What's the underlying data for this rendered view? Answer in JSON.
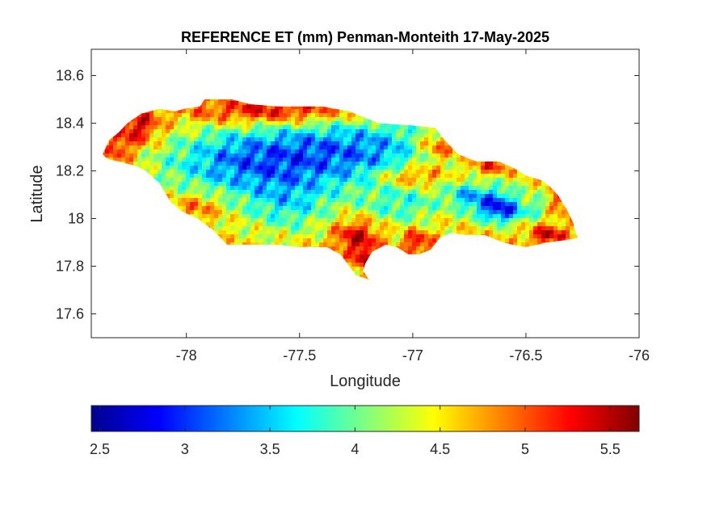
{
  "chart_data": {
    "type": "heatmap",
    "title": "REFERENCE ET (mm) Penman-Monteith 17-May-2025",
    "xlabel": "Longitude",
    "ylabel": "Latitude",
    "xlim": [
      -78.42,
      -76.0
    ],
    "ylim": [
      17.5,
      18.71
    ],
    "xticks": [
      -78,
      -77.5,
      -77,
      -76.5,
      -76
    ],
    "yticks": [
      17.6,
      17.8,
      18,
      18.2,
      18.4,
      18.6
    ],
    "xtick_labels": [
      "-78",
      "-77.5",
      "-77",
      "-76.5",
      "-76"
    ],
    "ytick_labels": [
      "17.6",
      "17.8",
      "18",
      "18.2",
      "18.4",
      "18.6"
    ],
    "grid": false,
    "colormap": "jet",
    "colorbar": {
      "location": "south",
      "clim": [
        2.45,
        5.67
      ],
      "ticks": [
        2.5,
        3,
        3.5,
        4,
        4.5,
        5,
        5.5
      ],
      "tick_labels": [
        "2.5",
        "3",
        "3.5",
        "4",
        "4.5",
        "5",
        "5.5"
      ]
    },
    "colormap_stops": [
      "#00008f",
      "#0000ff",
      "#0080ff",
      "#00ffff",
      "#80ff80",
      "#ffff00",
      "#ff8000",
      "#ff0000",
      "#800000"
    ],
    "outline": [
      [
        -78.37,
        18.27
      ],
      [
        -78.34,
        18.33
      ],
      [
        -78.3,
        18.36
      ],
      [
        -78.26,
        18.4
      ],
      [
        -78.2,
        18.44
      ],
      [
        -78.12,
        18.46
      ],
      [
        -78.05,
        18.45
      ],
      [
        -78.01,
        18.46
      ],
      [
        -77.94,
        18.47
      ],
      [
        -77.92,
        18.5
      ],
      [
        -77.8,
        18.5
      ],
      [
        -77.72,
        18.48
      ],
      [
        -77.6,
        18.47
      ],
      [
        -77.4,
        18.47
      ],
      [
        -77.28,
        18.45
      ],
      [
        -77.15,
        18.4
      ],
      [
        -77.0,
        18.39
      ],
      [
        -76.9,
        18.38
      ],
      [
        -76.86,
        18.33
      ],
      [
        -76.8,
        18.27
      ],
      [
        -76.72,
        18.24
      ],
      [
        -76.62,
        18.24
      ],
      [
        -76.55,
        18.21
      ],
      [
        -76.5,
        18.18
      ],
      [
        -76.43,
        18.16
      ],
      [
        -76.4,
        18.14
      ],
      [
        -76.36,
        18.1
      ],
      [
        -76.32,
        18.04
      ],
      [
        -76.29,
        17.98
      ],
      [
        -76.28,
        17.94
      ],
      [
        -76.27,
        17.92
      ],
      [
        -76.32,
        17.91
      ],
      [
        -76.4,
        17.9
      ],
      [
        -76.5,
        17.88
      ],
      [
        -76.56,
        17.89
      ],
      [
        -76.6,
        17.9
      ],
      [
        -76.68,
        17.93
      ],
      [
        -76.76,
        17.93
      ],
      [
        -76.83,
        17.94
      ],
      [
        -76.88,
        17.92
      ],
      [
        -76.92,
        17.87
      ],
      [
        -76.97,
        17.85
      ],
      [
        -77.02,
        17.85
      ],
      [
        -77.07,
        17.88
      ],
      [
        -77.12,
        17.89
      ],
      [
        -77.18,
        17.86
      ],
      [
        -77.21,
        17.81
      ],
      [
        -77.22,
        17.78
      ],
      [
        -77.19,
        17.74
      ],
      [
        -77.17,
        17.73
      ],
      [
        -77.21,
        17.75
      ],
      [
        -77.25,
        17.76
      ],
      [
        -77.28,
        17.8
      ],
      [
        -77.32,
        17.85
      ],
      [
        -77.38,
        17.88
      ],
      [
        -77.5,
        17.88
      ],
      [
        -77.6,
        17.89
      ],
      [
        -77.72,
        17.89
      ],
      [
        -77.82,
        17.89
      ],
      [
        -77.88,
        17.95
      ],
      [
        -77.95,
        18.0
      ],
      [
        -78.02,
        18.03
      ],
      [
        -78.07,
        18.07
      ],
      [
        -78.12,
        18.15
      ],
      [
        -78.18,
        18.2
      ],
      [
        -78.22,
        18.22
      ],
      [
        -78.3,
        18.24
      ],
      [
        -78.35,
        18.25
      ]
    ],
    "value_blobs": [
      {
        "lon": -77.3,
        "lat": 18.28,
        "sx": 0.55,
        "sy": 0.16,
        "v": -1.3
      },
      {
        "lon": -77.8,
        "lat": 18.22,
        "sx": 0.35,
        "sy": 0.14,
        "v": -0.8
      },
      {
        "lon": -77.55,
        "lat": 18.05,
        "sx": 0.2,
        "sy": 0.12,
        "v": -0.7
      },
      {
        "lon": -77.05,
        "lat": 18.05,
        "sx": 0.18,
        "sy": 0.08,
        "v": -0.6
      },
      {
        "lon": -76.64,
        "lat": 18.06,
        "sx": 0.12,
        "sy": 0.07,
        "v": -1.4
      },
      {
        "lon": -76.58,
        "lat": 18.02,
        "sx": 0.08,
        "sy": 0.04,
        "v": -0.7
      },
      {
        "lon": -76.78,
        "lat": 18.1,
        "sx": 0.08,
        "sy": 0.05,
        "v": -0.6
      },
      {
        "lon": -76.45,
        "lat": 18.05,
        "sx": 0.05,
        "sy": 0.05,
        "v": -0.5
      },
      {
        "lon": -77.6,
        "lat": 18.45,
        "sx": 0.4,
        "sy": 0.06,
        "v": 1.0
      },
      {
        "lon": -78.22,
        "lat": 18.38,
        "sx": 0.1,
        "sy": 0.08,
        "v": 0.9
      },
      {
        "lon": -78.3,
        "lat": 18.28,
        "sx": 0.06,
        "sy": 0.06,
        "v": 0.6
      },
      {
        "lon": -76.88,
        "lat": 18.3,
        "sx": 0.12,
        "sy": 0.07,
        "v": 1.0
      },
      {
        "lon": -76.66,
        "lat": 18.22,
        "sx": 0.1,
        "sy": 0.04,
        "v": 0.8
      },
      {
        "lon": -77.0,
        "lat": 18.18,
        "sx": 0.16,
        "sy": 0.05,
        "v": 0.9
      },
      {
        "lon": -77.25,
        "lat": 17.92,
        "sx": 0.1,
        "sy": 0.08,
        "v": 0.9
      },
      {
        "lon": -77.2,
        "lat": 17.82,
        "sx": 0.04,
        "sy": 0.05,
        "v": 1.0
      },
      {
        "lon": -76.98,
        "lat": 17.9,
        "sx": 0.06,
        "sy": 0.05,
        "v": 0.8
      },
      {
        "lon": -76.4,
        "lat": 17.93,
        "sx": 0.08,
        "sy": 0.04,
        "v": 0.9
      },
      {
        "lon": -76.34,
        "lat": 18.08,
        "sx": 0.05,
        "sy": 0.05,
        "v": 0.6
      },
      {
        "lon": -77.95,
        "lat": 18.05,
        "sx": 0.1,
        "sy": 0.06,
        "v": 0.5
      }
    ]
  }
}
